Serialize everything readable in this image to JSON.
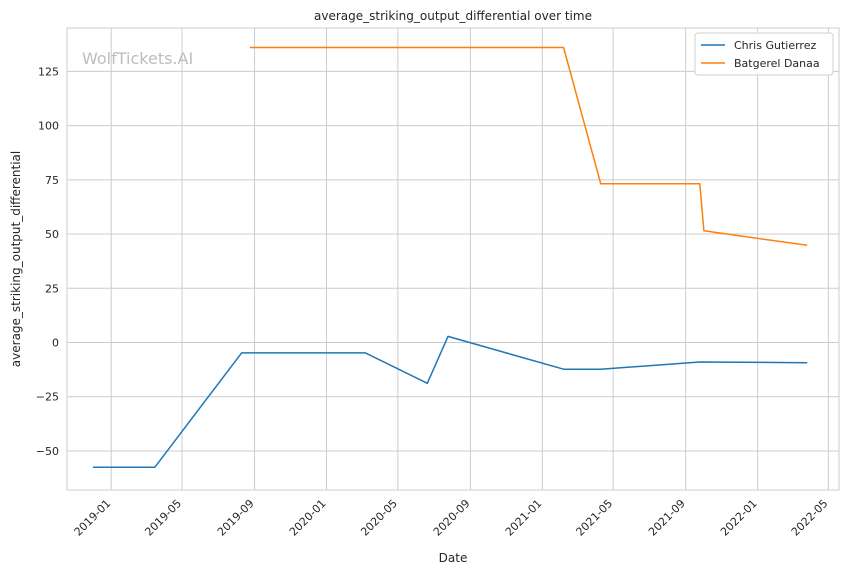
{
  "chart_data": {
    "type": "line",
    "title": "average_striking_output_differential over time",
    "xlabel": "Date",
    "ylabel": "average_striking_output_differential",
    "watermark": "WolfTickets.AI",
    "x_ticks": [
      "2019-01",
      "2019-05",
      "2019-09",
      "2020-01",
      "2020-05",
      "2020-09",
      "2021-01",
      "2021-05",
      "2021-09",
      "2022-01",
      "2022-05"
    ],
    "y_ticks": [
      -50,
      -25,
      0,
      25,
      50,
      75,
      100,
      125
    ],
    "xlim": [
      "2018-10-18",
      "2022-05-19"
    ],
    "ylim": [
      -68,
      145
    ],
    "grid": true,
    "legend_position": "top-right",
    "series": [
      {
        "name": "Chris Gutierrez",
        "color": "#1f77b4",
        "x": [
          "2018-12-01",
          "2019-03-16",
          "2019-08-10",
          "2020-03-07",
          "2020-06-20",
          "2020-07-25",
          "2021-02-06",
          "2021-04-10",
          "2021-09-25",
          "2022-03-26"
        ],
        "y": [
          -57.5,
          -57.5,
          -4.8,
          -4.8,
          -18.8,
          2.8,
          -12.3,
          -12.3,
          -9.0,
          -9.3
        ]
      },
      {
        "name": "Batgerel Danaa",
        "color": "#ff7f0e",
        "x": [
          "2019-08-24",
          "2021-02-06",
          "2021-04-10",
          "2021-09-25",
          "2021-10-02",
          "2022-03-26"
        ],
        "y": [
          136,
          136,
          73.2,
          73.2,
          51.5,
          44.8
        ]
      }
    ]
  }
}
